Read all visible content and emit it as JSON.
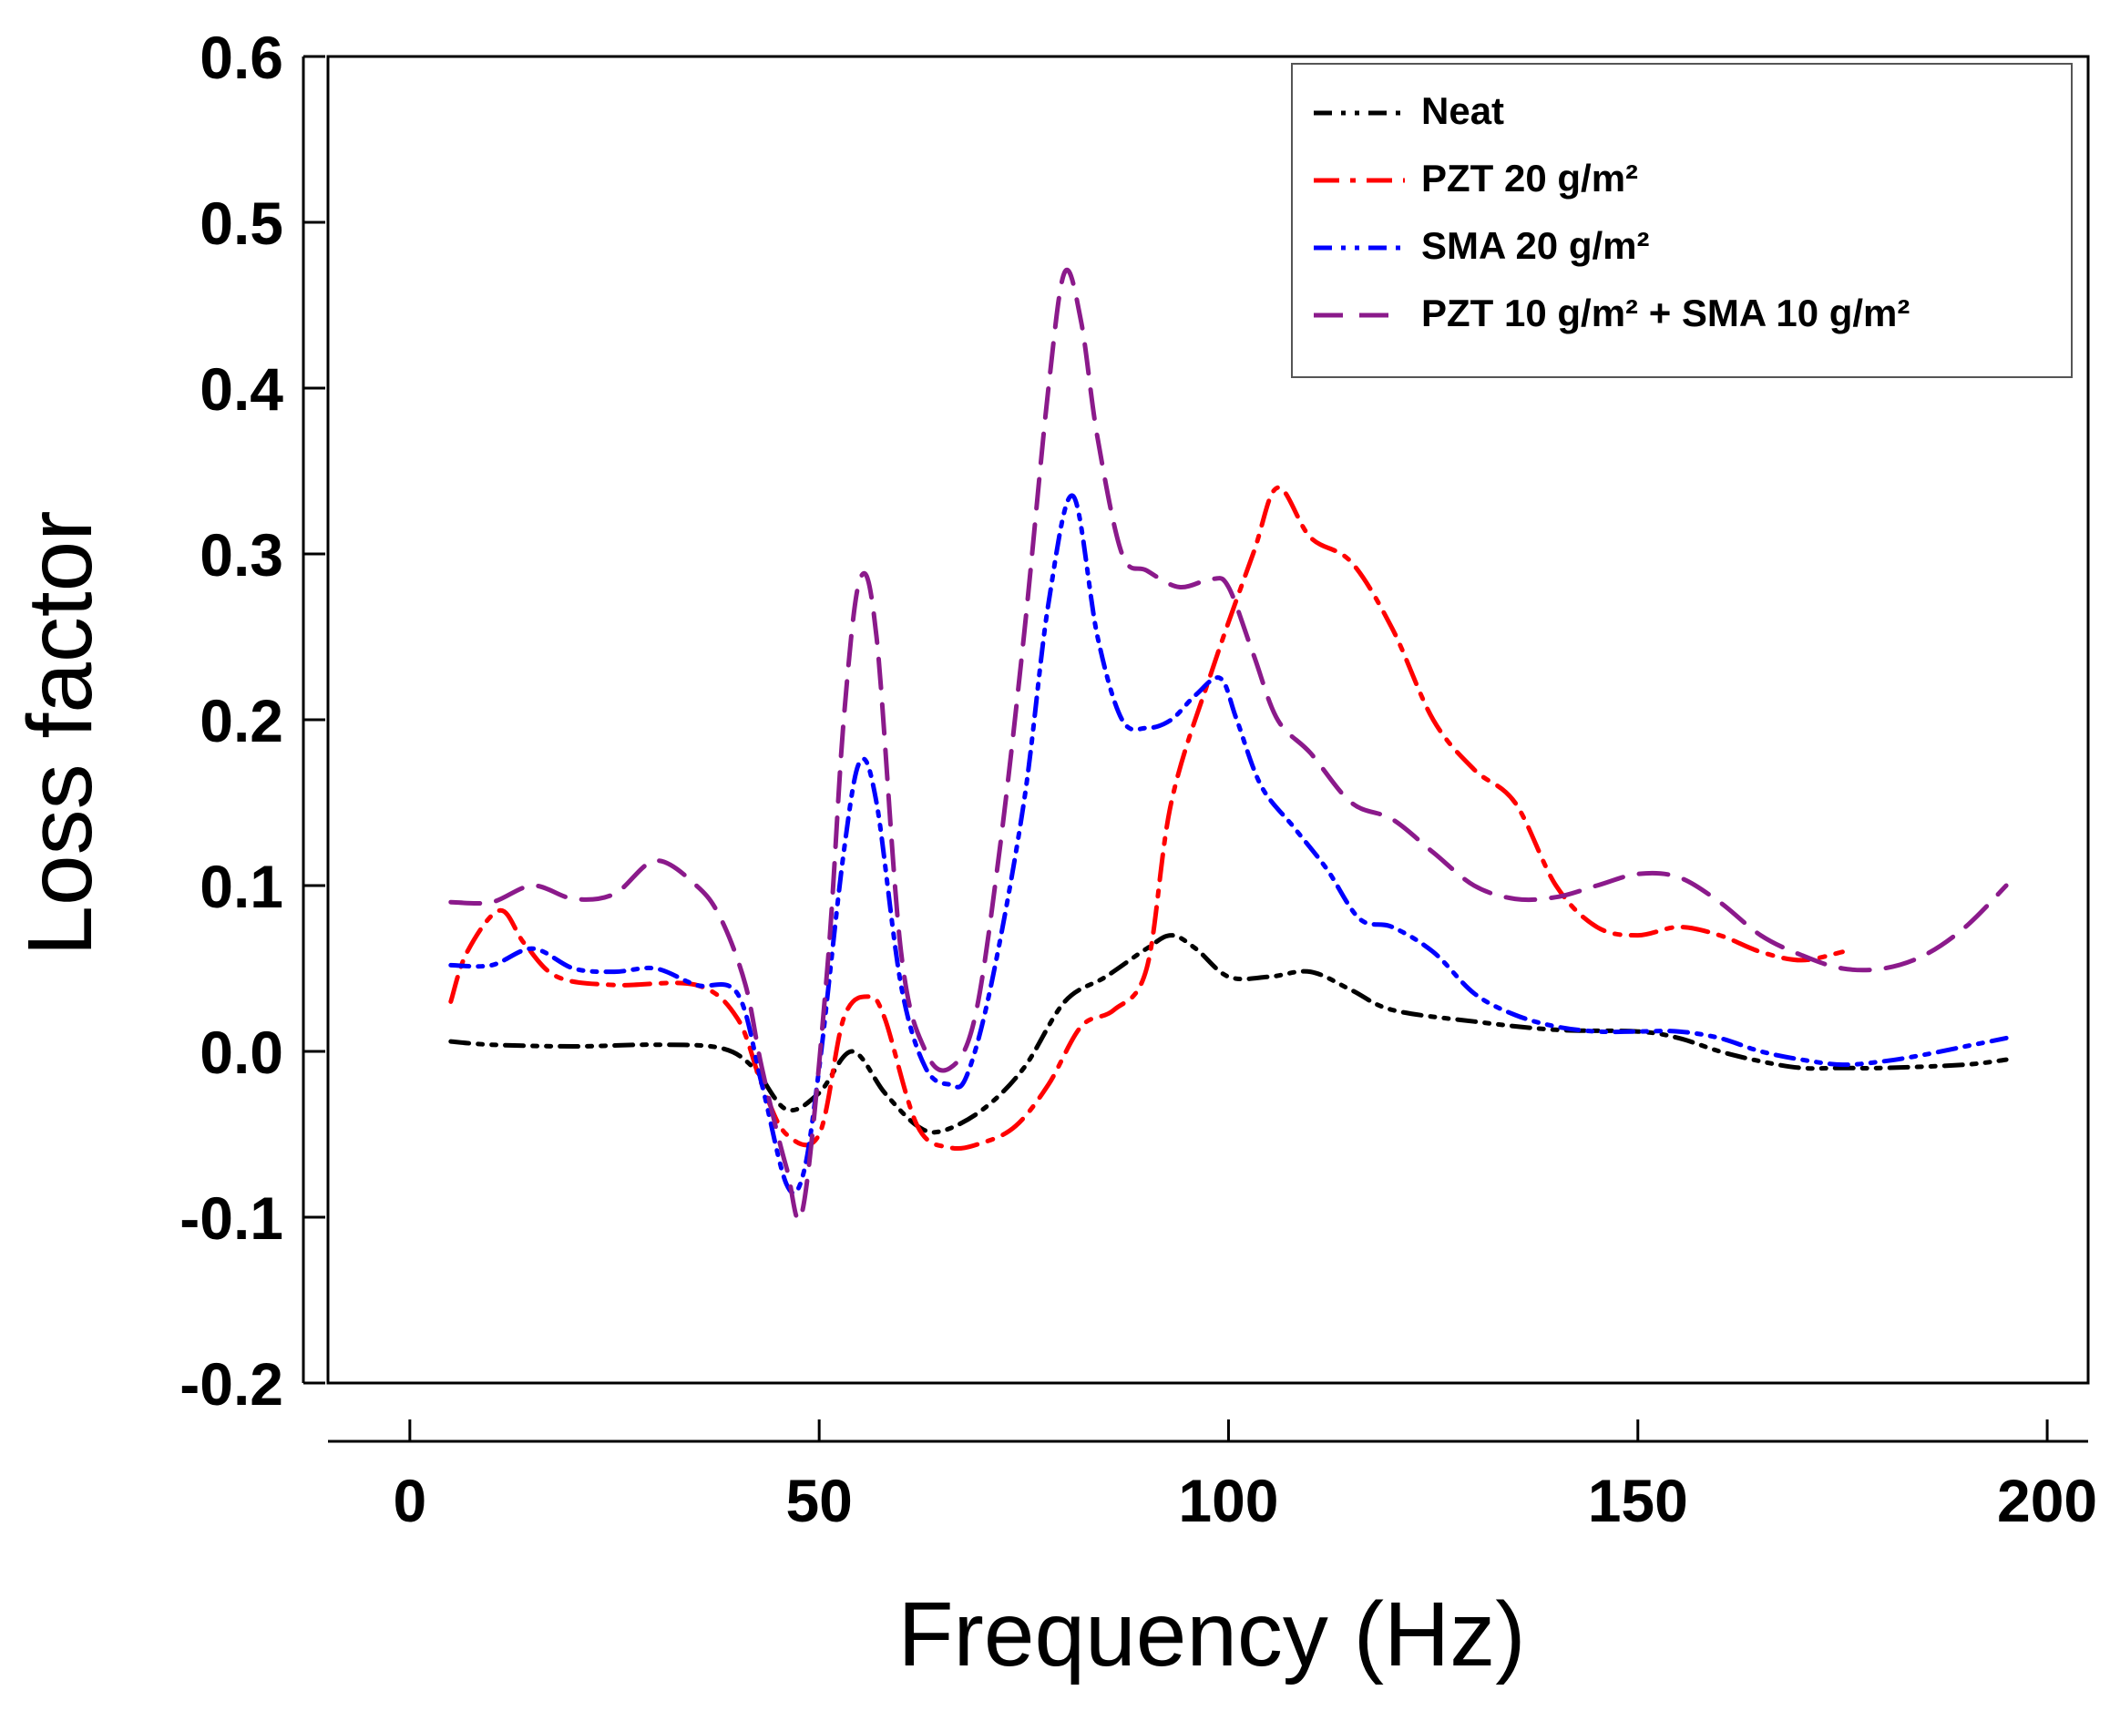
{
  "chart_data": {
    "type": "line",
    "title": "",
    "xlabel": "Frequency (Hz)",
    "ylabel": "Loss factor",
    "xlim": [
      -10,
      205
    ],
    "ylim": [
      -0.2,
      0.6
    ],
    "xticks": [
      0,
      50,
      100,
      150,
      200
    ],
    "xtick_labels": [
      "0",
      "50",
      "100",
      "150",
      "200"
    ],
    "yticks": [
      -0.2,
      -0.1,
      0.0,
      0.1,
      0.2,
      0.3,
      0.4,
      0.5,
      0.6
    ],
    "ytick_labels": [
      "-0.2",
      "-0.1",
      "0.0",
      "0.1",
      "0.2",
      "0.3",
      "0.4",
      "0.5",
      "0.6"
    ],
    "grid": false,
    "legend_position": "top-right",
    "series": [
      {
        "name": "Neat",
        "color": "#000000",
        "dash": "dash-dot-dot",
        "x": [
          5,
          10,
          20,
          30,
          38,
          42,
          46,
          50,
          54,
          58,
          62,
          65,
          70,
          75,
          80,
          85,
          90,
          93,
          96,
          100,
          105,
          110,
          115,
          120,
          130,
          140,
          150,
          155,
          160,
          165,
          170,
          175,
          180,
          190,
          195
        ],
        "y": [
          0.006,
          0.004,
          0.003,
          0.004,
          0.002,
          -0.01,
          -0.035,
          -0.025,
          0.0,
          -0.025,
          -0.045,
          -0.048,
          -0.035,
          -0.01,
          0.03,
          0.045,
          0.062,
          0.07,
          0.062,
          0.045,
          0.045,
          0.048,
          0.037,
          0.025,
          0.018,
          0.013,
          0.012,
          0.008,
          0.0,
          -0.006,
          -0.01,
          -0.01,
          -0.01,
          -0.008,
          -0.005
        ]
      },
      {
        "name": "PZT 20 g/m²",
        "color": "#ff0000",
        "dash": "dash-dot",
        "x": [
          5,
          7,
          11,
          14,
          18,
          25,
          35,
          40,
          43,
          46,
          50,
          53,
          56,
          58,
          62,
          66,
          70,
          74,
          78,
          82,
          86,
          90,
          93,
          98,
          103,
          106,
          110,
          115,
          120,
          125,
          130,
          135,
          140,
          145,
          150,
          155,
          160,
          165,
          170,
          175
        ],
        "y": [
          0.03,
          0.06,
          0.085,
          0.065,
          0.045,
          0.04,
          0.04,
          0.02,
          -0.02,
          -0.05,
          -0.05,
          0.02,
          0.033,
          0.02,
          -0.045,
          -0.058,
          -0.055,
          -0.045,
          -0.02,
          0.015,
          0.025,
          0.05,
          0.15,
          0.23,
          0.3,
          0.34,
          0.31,
          0.295,
          0.255,
          0.2,
          0.17,
          0.15,
          0.1,
          0.075,
          0.07,
          0.075,
          0.07,
          0.06,
          0.055,
          0.06
        ]
      },
      {
        "name": "SMA 20 g/m²",
        "color": "#0000ff",
        "dash": "dash-dot-dot",
        "x": [
          5,
          10,
          15,
          20,
          25,
          30,
          35,
          40,
          43,
          46,
          48,
          50,
          53,
          55,
          57,
          60,
          63,
          66,
          68,
          71,
          75,
          78,
          81,
          84,
          87,
          90,
          93,
          96,
          99,
          101,
          104,
          108,
          112,
          116,
          120,
          125,
          130,
          135,
          140,
          145,
          150,
          155,
          160,
          165,
          170,
          175,
          180,
          185,
          190,
          195
        ],
        "y": [
          0.052,
          0.052,
          0.062,
          0.05,
          0.048,
          0.05,
          0.04,
          0.035,
          -0.02,
          -0.08,
          -0.075,
          -0.01,
          0.12,
          0.175,
          0.15,
          0.04,
          -0.01,
          -0.02,
          -0.015,
          0.04,
          0.15,
          0.27,
          0.335,
          0.25,
          0.2,
          0.195,
          0.2,
          0.215,
          0.225,
          0.2,
          0.16,
          0.135,
          0.11,
          0.08,
          0.075,
          0.06,
          0.035,
          0.022,
          0.015,
          0.012,
          0.012,
          0.012,
          0.008,
          0.0,
          -0.005,
          -0.008,
          -0.006,
          -0.002,
          0.003,
          0.008
        ]
      },
      {
        "name": "PZT 10 g/m² + SMA 10 g/m²",
        "color": "#8b1a8b",
        "dash": "dash",
        "x": [
          5,
          10,
          15,
          20,
          25,
          30,
          35,
          38,
          41,
          43,
          46,
          48,
          51,
          53,
          55,
          57,
          60,
          63,
          66,
          69,
          72,
          75,
          78,
          80,
          82,
          84,
          87,
          90,
          94,
          98,
          100,
          103,
          106,
          110,
          115,
          120,
          125,
          130,
          135,
          140,
          145,
          150,
          155,
          160,
          165,
          170,
          175,
          180,
          185,
          190,
          195
        ],
        "y": [
          0.09,
          0.09,
          0.1,
          0.092,
          0.095,
          0.115,
          0.1,
          0.08,
          0.04,
          -0.01,
          -0.07,
          -0.095,
          0.05,
          0.2,
          0.285,
          0.25,
          0.06,
          0.0,
          -0.01,
          0.02,
          0.12,
          0.25,
          0.4,
          0.47,
          0.44,
          0.37,
          0.3,
          0.29,
          0.28,
          0.285,
          0.28,
          0.24,
          0.2,
          0.18,
          0.15,
          0.14,
          0.12,
          0.1,
          0.092,
          0.093,
          0.1,
          0.107,
          0.105,
          0.09,
          0.07,
          0.058,
          0.05,
          0.05,
          0.058,
          0.075,
          0.1
        ]
      }
    ]
  }
}
